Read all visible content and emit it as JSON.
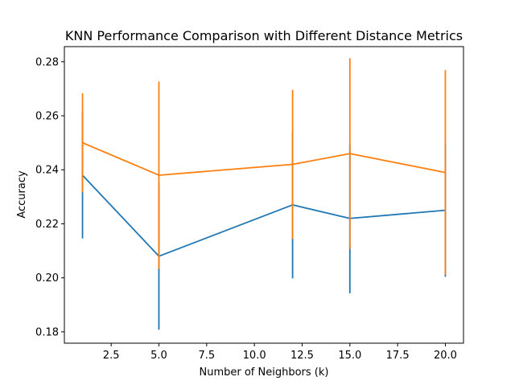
{
  "chart_data": {
    "type": "line",
    "title": "KNN Performance Comparison with Different Distance Metrics",
    "xlabel": "Number of Neighbors (k)",
    "ylabel": "Accuracy",
    "xlim": [
      0.05,
      20.95
    ],
    "ylim": [
      0.1758,
      0.2856
    ],
    "xticks": [
      2.5,
      5.0,
      7.5,
      10.0,
      12.5,
      15.0,
      17.5,
      20.0
    ],
    "yticks": [
      0.18,
      0.2,
      0.22,
      0.24,
      0.26,
      0.28
    ],
    "xtick_labels": [
      "2.5",
      "5.0",
      "7.5",
      "10.0",
      "12.5",
      "15.0",
      "17.5",
      "20.0"
    ],
    "ytick_labels": [
      "0.18",
      "0.20",
      "0.22",
      "0.24",
      "0.26",
      "0.28"
    ],
    "grid": false,
    "x": [
      1,
      5,
      12,
      15,
      20
    ],
    "series": [
      {
        "color": "#1f77b4",
        "values": [
          0.238,
          0.208,
          0.227,
          0.222,
          0.225
        ],
        "errors": [
          0.0234,
          0.0272,
          0.0272,
          0.0277,
          0.0246
        ]
      },
      {
        "color": "#ff7f0e",
        "values": [
          0.25,
          0.238,
          0.242,
          0.246,
          0.239
        ],
        "errors": [
          0.0183,
          0.0347,
          0.0276,
          0.0353,
          0.0379
        ]
      }
    ]
  }
}
